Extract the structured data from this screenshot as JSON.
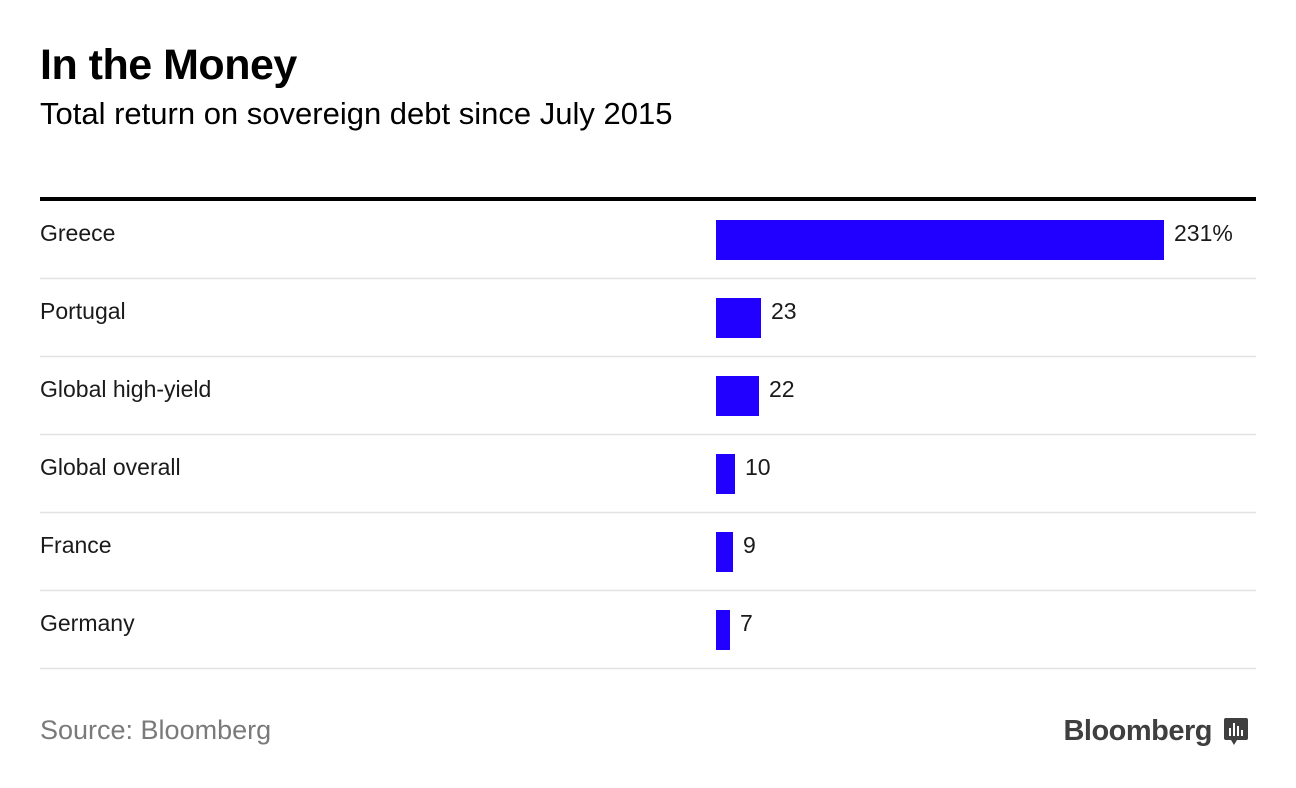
{
  "header": {
    "title": "In the Money",
    "subtitle": "Total return on sovereign debt since July 2015"
  },
  "chart_data": {
    "type": "bar",
    "orientation": "horizontal",
    "title": "In the Money",
    "subtitle": "Total return on sovereign debt since July 2015",
    "categories": [
      "Greece",
      "Portugal",
      "Global high-yield",
      "Global overall",
      "France",
      "Germany"
    ],
    "values": [
      231,
      23,
      22,
      10,
      9,
      7
    ],
    "value_labels": [
      "231%",
      "23",
      "22",
      "10",
      "9",
      "7"
    ],
    "unit": "%",
    "xlim": [
      0,
      231
    ],
    "bar_color": "#2200ff",
    "gridlines": false
  },
  "footer": {
    "source": "Source: Bloomberg",
    "brand": "Bloomberg"
  },
  "colors": {
    "bar": "#2200ff",
    "rule": "#000000",
    "separator": "#e2e2e2",
    "source_text": "#7a7a7a",
    "brand_text": "#3f3f3f"
  },
  "icons": {
    "brand": "bloomberg-chart-icon"
  }
}
